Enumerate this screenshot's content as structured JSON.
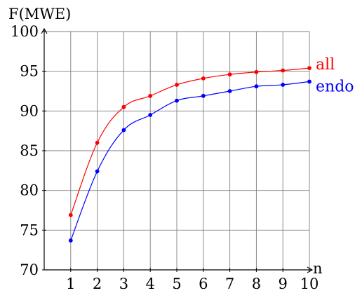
{
  "chart_data": {
    "type": "line",
    "ylabel": "F(MWE)",
    "xlabel": "n",
    "x": [
      1,
      2,
      3,
      4,
      5,
      6,
      7,
      8,
      9,
      10
    ],
    "xlim": [
      0,
      10
    ],
    "ylim": [
      70,
      100
    ],
    "yticks": [
      70,
      75,
      80,
      85,
      90,
      95,
      100
    ],
    "grid": true,
    "series": [
      {
        "name": "all",
        "color": "#ff0000",
        "values": [
          76.9,
          86.0,
          90.5,
          91.9,
          93.3,
          94.1,
          94.6,
          94.9,
          95.1,
          95.4
        ]
      },
      {
        "name": "endo",
        "color": "#0000ff",
        "values": [
          73.7,
          82.4,
          87.6,
          89.5,
          91.3,
          91.9,
          92.5,
          93.1,
          93.3,
          93.7
        ]
      }
    ]
  }
}
